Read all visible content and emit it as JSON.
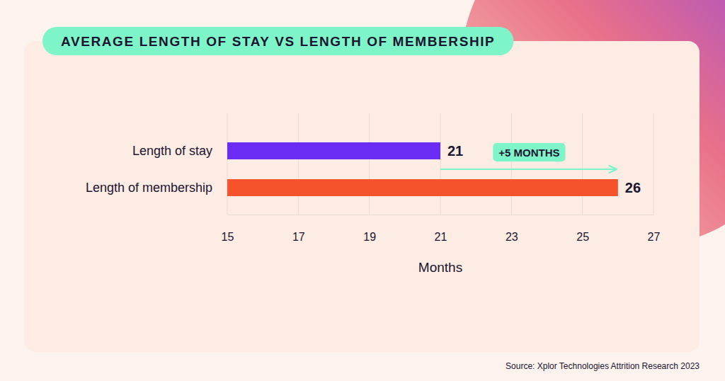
{
  "chart_data": {
    "type": "bar",
    "orientation": "horizontal",
    "title": "AVERAGE LENGTH OF STAY VS LENGTH OF MEMBERSHIP",
    "categories": [
      "Length of stay",
      "Length of membership"
    ],
    "values": [
      21,
      26
    ],
    "colors": [
      "#6b2cf5",
      "#f5532b"
    ],
    "xlim": [
      15,
      27
    ],
    "xticks": [
      15,
      17,
      19,
      21,
      23,
      25,
      27
    ],
    "xlabel": "Months",
    "grid": true,
    "data_labels": true,
    "annotation": "+5 MONTHS",
    "source": "Source: Xplor Technologies Attrition Research 2023"
  }
}
